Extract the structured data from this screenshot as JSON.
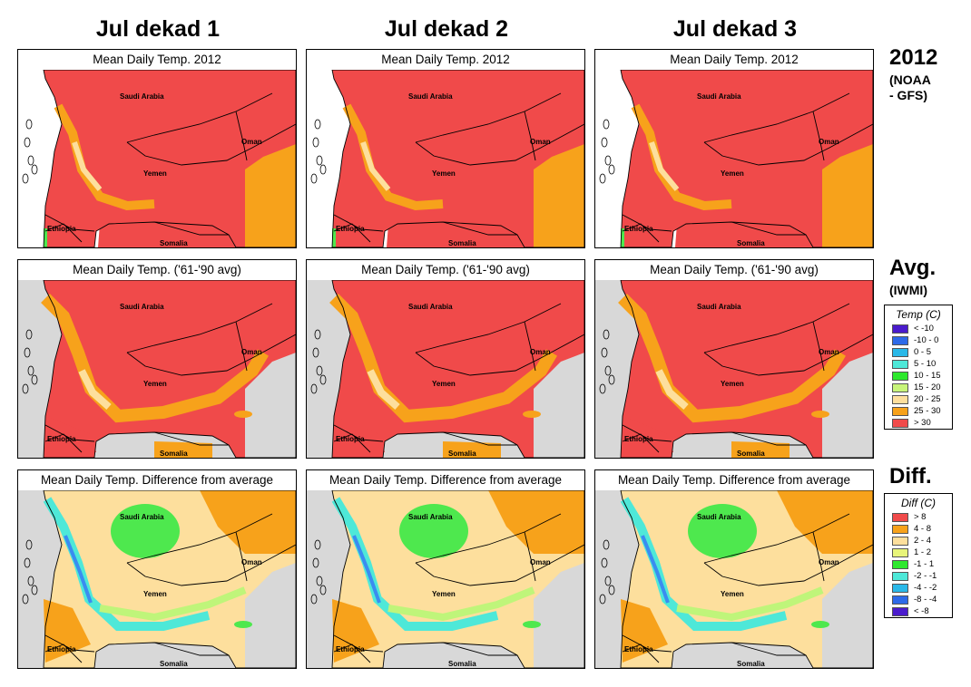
{
  "columns": [
    "Jul dekad 1",
    "Jul dekad 2",
    "Jul dekad 3"
  ],
  "rows": [
    {
      "label": "2012",
      "sub": "(NOAA\n- GFS)",
      "panel_title": "Mean Daily Temp. 2012",
      "scheme": "t2012"
    },
    {
      "label": "Avg.",
      "sub": "(IWMI)",
      "panel_title": "Mean Daily Temp. ('61-'90 avg)",
      "scheme": "tavg"
    },
    {
      "label": "Diff.",
      "sub": "",
      "panel_title": "Mean Daily Temp. Difference from average",
      "scheme": "diff"
    }
  ],
  "place_labels": {
    "saudi": "Saudi Arabia",
    "oman": "Oman",
    "yemen": "Yemen",
    "ethiopia": "Ethiopia",
    "somalia": "Somalia"
  },
  "colors": {
    "hot": "#f04a4a",
    "warm": "#f7a21b",
    "mild": "#fddf9d",
    "cool": "#f4fc9a",
    "green": "#4ee84e",
    "sea": "#d8d8d8",
    "diff_base": "#fddf9d",
    "diff_orange": "#f7a21b",
    "diff_lightgreen": "#bff57a",
    "diff_cyan": "#4ee8d8",
    "diff_blue": "#3a8cf0"
  },
  "legend_temp": {
    "title": "Temp (C)",
    "items": [
      {
        "label": "< -10",
        "color": "#4a1bcc"
      },
      {
        "label": "-10 - 0",
        "color": "#2e6ae8"
      },
      {
        "label": "0 - 5",
        "color": "#2ab8e8"
      },
      {
        "label": "5 - 10",
        "color": "#4ee8d8"
      },
      {
        "label": "10 - 15",
        "color": "#2ee82e"
      },
      {
        "label": "15 - 20",
        "color": "#c8f57a"
      },
      {
        "label": "20 - 25",
        "color": "#fddf9d"
      },
      {
        "label": "25 - 30",
        "color": "#f7a21b"
      },
      {
        "label": "> 30",
        "color": "#f04a4a"
      }
    ]
  },
  "legend_diff": {
    "title": "Diff (C)",
    "items": [
      {
        "label": "> 8",
        "color": "#f04a4a"
      },
      {
        "label": "4 - 8",
        "color": "#f7a21b"
      },
      {
        "label": "2 - 4",
        "color": "#fddf9d"
      },
      {
        "label": "1 - 2",
        "color": "#e8f57a"
      },
      {
        "label": "-1 - 1",
        "color": "#2ee82e"
      },
      {
        "label": "-2 - -1",
        "color": "#4ee8d8"
      },
      {
        "label": "-4 - -2",
        "color": "#2ab8e8"
      },
      {
        "label": "-8 - -4",
        "color": "#2e6ae8"
      },
      {
        "label": "< -8",
        "color": "#4a1bcc"
      }
    ]
  }
}
